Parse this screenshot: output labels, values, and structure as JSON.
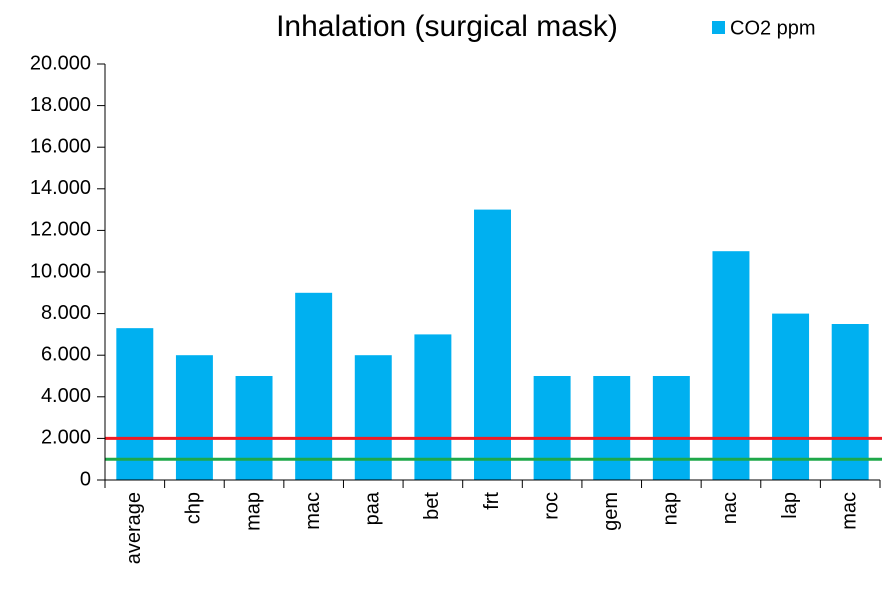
{
  "chart_data": {
    "type": "bar",
    "title": "Inhalation  (surgical mask)",
    "categories": [
      "average",
      "chp",
      "map",
      "mac",
      "paa",
      "bet",
      "frt",
      "roc",
      "gem",
      "nap",
      "nac",
      "lap",
      "mac"
    ],
    "series": [
      {
        "name": "CO2 ppm",
        "color": "#00b0f0",
        "values": [
          7300,
          6000,
          5000,
          9000,
          6000,
          7000,
          13000,
          5000,
          5000,
          5000,
          11000,
          8000,
          7500
        ]
      }
    ],
    "ylim": [
      0,
      20000
    ],
    "yticks": [
      0,
      {
        "value": 2000,
        "label": "2.000"
      },
      {
        "value": 4000,
        "label": "4.000"
      },
      {
        "value": 6000,
        "label": "6.000"
      },
      {
        "value": 8000,
        "label": "8.000"
      },
      {
        "value": 10000,
        "label": "10.000"
      },
      {
        "value": 12000,
        "label": "12.000"
      },
      {
        "value": 14000,
        "label": "14.000"
      },
      {
        "value": 16000,
        "label": "16.000"
      },
      {
        "value": 18000,
        "label": "18.000"
      },
      {
        "value": 20000,
        "label": "20.000"
      }
    ],
    "reference_lines": [
      {
        "value": 2000,
        "color": "#ee1c25"
      },
      {
        "value": 1000,
        "color": "#1fa84a"
      }
    ],
    "grid": false,
    "legend": "top-right"
  }
}
